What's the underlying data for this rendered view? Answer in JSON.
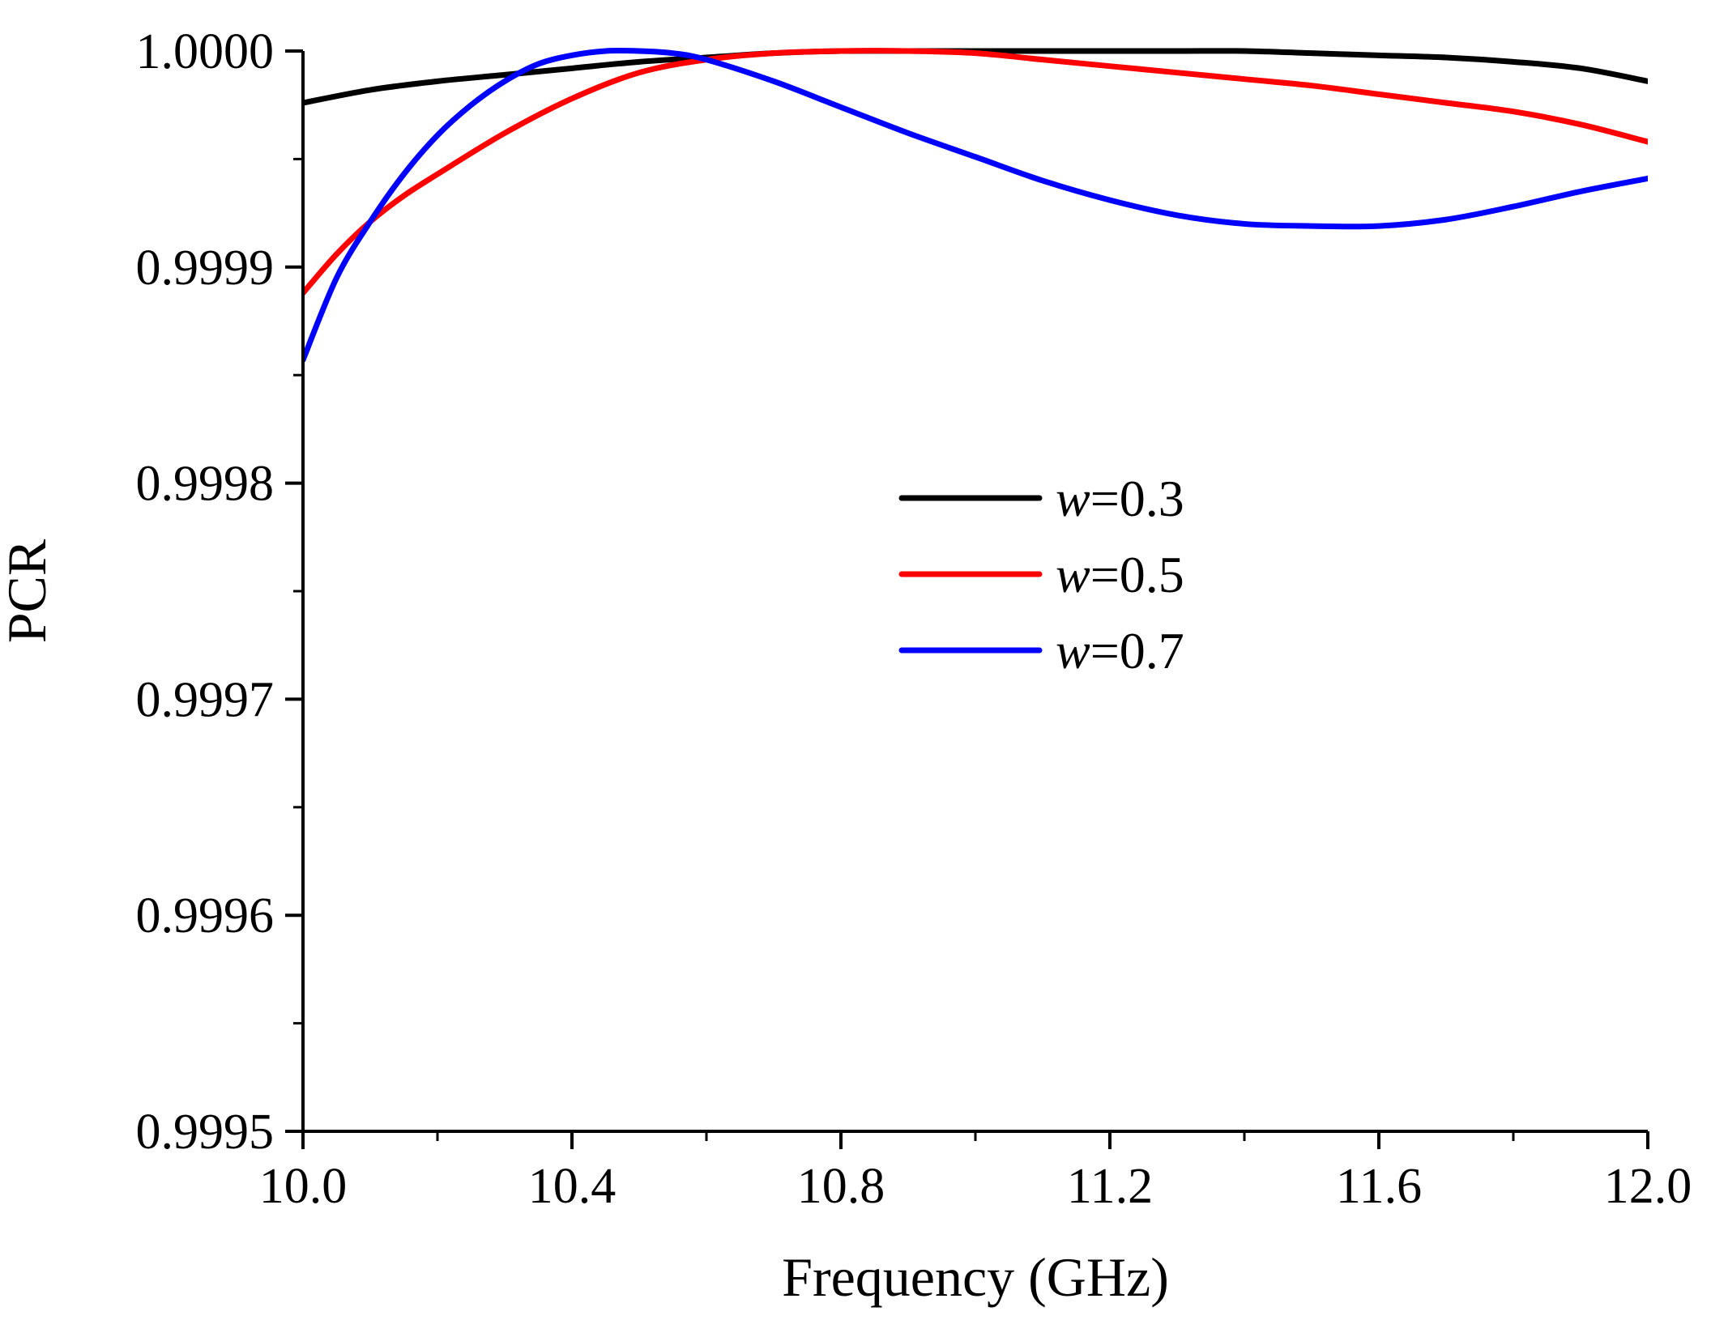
{
  "chart_data": {
    "type": "line",
    "title": "",
    "xlabel": "Frequency (GHz)",
    "ylabel": "PCR",
    "xlim": [
      10.0,
      12.0
    ],
    "ylim": [
      0.9995,
      1.0
    ],
    "xticks": [
      "10.0",
      "10.4",
      "10.8",
      "11.2",
      "11.6",
      "12.0"
    ],
    "xtick_values": [
      10.0,
      10.4,
      10.8,
      11.2,
      11.6,
      12.0
    ],
    "yticks": [
      "0.9995",
      "0.9996",
      "0.9997",
      "0.9998",
      "0.9999",
      "1.0000"
    ],
    "ytick_values": [
      0.9995,
      0.9996,
      0.9997,
      0.9998,
      0.9999,
      1.0
    ],
    "legend_position": "center-right",
    "series": [
      {
        "name": "w=0.3",
        "legend_var": "w",
        "legend_value": "=0.3",
        "color": "#000000",
        "x": [
          10.0,
          10.1,
          10.2,
          10.3,
          10.4,
          10.5,
          10.6,
          10.7,
          10.8,
          10.9,
          11.0,
          11.1,
          11.2,
          11.3,
          11.4,
          11.5,
          11.6,
          11.7,
          11.8,
          11.9,
          12.0
        ],
        "y": [
          0.999976,
          0.999982,
          0.999986,
          0.999989,
          0.999992,
          0.999995,
          0.999997,
          0.999999,
          1.0,
          1.0,
          1.0,
          1.0,
          1.0,
          1.0,
          1.0,
          0.999999,
          0.999998,
          0.999997,
          0.999995,
          0.999992,
          0.999986
        ]
      },
      {
        "name": "w=0.5",
        "legend_var": "w",
        "legend_value": "=0.5",
        "color": "#ff0000",
        "x": [
          10.0,
          10.05,
          10.1,
          10.15,
          10.2,
          10.3,
          10.4,
          10.5,
          10.6,
          10.7,
          10.8,
          10.9,
          11.0,
          11.1,
          11.2,
          11.3,
          11.4,
          11.5,
          11.6,
          11.7,
          11.8,
          11.9,
          12.0
        ],
        "y": [
          0.999888,
          0.999906,
          0.999921,
          0.999933,
          0.999943,
          0.999962,
          0.999978,
          0.99999,
          0.999996,
          0.999999,
          1.0,
          1.0,
          0.999999,
          0.999996,
          0.999993,
          0.99999,
          0.999987,
          0.999984,
          0.99998,
          0.999976,
          0.999972,
          0.999966,
          0.999958
        ]
      },
      {
        "name": "w=0.7",
        "legend_var": "w",
        "legend_value": "=0.7",
        "color": "#0000ff",
        "x": [
          10.0,
          10.05,
          10.1,
          10.15,
          10.2,
          10.25,
          10.3,
          10.35,
          10.4,
          10.45,
          10.5,
          10.55,
          10.6,
          10.7,
          10.8,
          10.9,
          11.0,
          11.1,
          11.2,
          11.3,
          11.4,
          11.5,
          11.6,
          11.7,
          11.8,
          11.9,
          12.0
        ],
        "y": [
          0.999857,
          0.999895,
          0.999921,
          0.999943,
          0.999961,
          0.999975,
          0.999986,
          0.999994,
          0.999998,
          1.0,
          1.0,
          0.999999,
          0.999996,
          0.999986,
          0.999974,
          0.999962,
          0.999951,
          0.99994,
          0.999931,
          0.999924,
          0.99992,
          0.999919,
          0.999919,
          0.999922,
          0.999928,
          0.999935,
          0.999941
        ]
      }
    ]
  }
}
